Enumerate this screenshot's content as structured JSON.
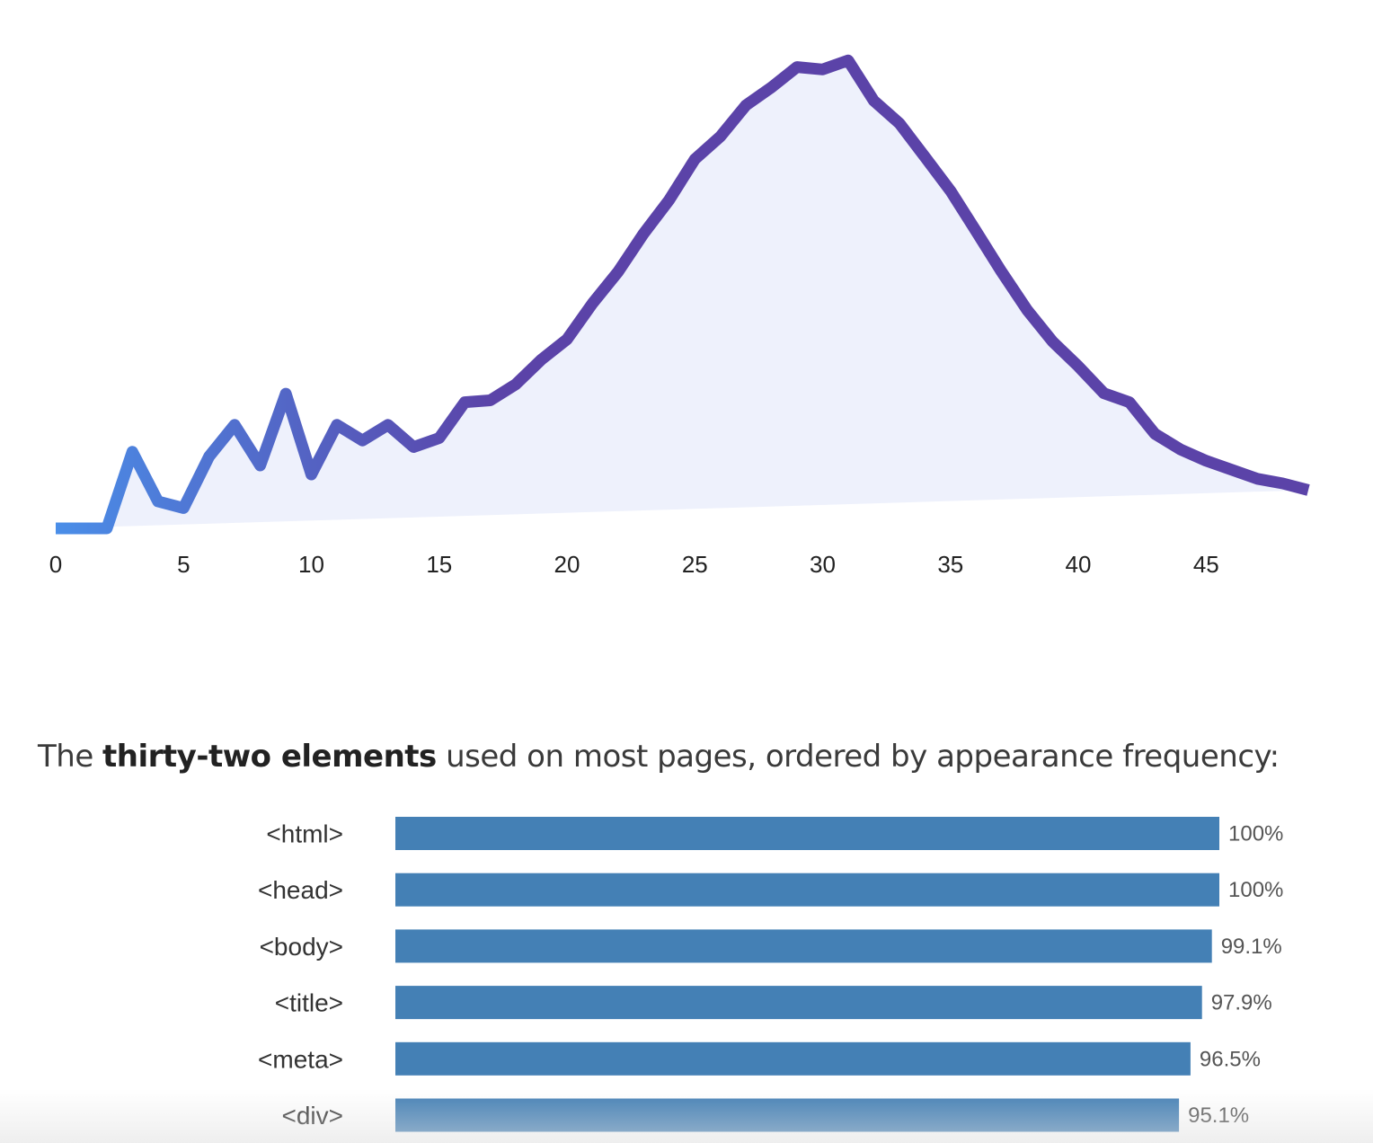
{
  "chart_data": [
    {
      "type": "area",
      "title": "",
      "xlabel": "",
      "ylabel": "",
      "x": [
        0,
        1,
        2,
        3,
        4,
        5,
        6,
        7,
        8,
        9,
        10,
        11,
        12,
        13,
        14,
        15,
        16,
        17,
        18,
        19,
        20,
        21,
        22,
        23,
        24,
        25,
        26,
        27,
        28,
        29,
        30,
        31,
        32,
        33,
        34,
        35,
        36,
        37,
        38,
        39,
        40,
        41,
        42,
        43,
        44,
        45,
        46,
        47,
        48,
        49
      ],
      "values": [
        0.0,
        0.0,
        0.0,
        1.62,
        0.57,
        0.43,
        1.52,
        2.19,
        1.33,
        2.85,
        1.14,
        2.19,
        1.86,
        2.19,
        1.72,
        1.91,
        2.67,
        2.71,
        3.05,
        3.57,
        4.0,
        4.76,
        5.43,
        6.24,
        6.95,
        7.81,
        8.29,
        8.95,
        9.33,
        9.76,
        9.71,
        9.9,
        9.05,
        8.57,
        7.86,
        7.14,
        6.29,
        5.43,
        4.62,
        3.95,
        3.43,
        2.86,
        2.67,
        2.0,
        1.67,
        1.43,
        1.24,
        1.05,
        0.95,
        0.81
      ],
      "ylim": [
        0,
        10
      ],
      "x_ticks": [
        "0",
        "5",
        "10",
        "15",
        "20",
        "25",
        "30",
        "35",
        "40",
        "45"
      ],
      "grid": false,
      "colors": {
        "line_start": "#4a8ee8",
        "line_end": "#5b43a8",
        "fill": "#eef1fc"
      }
    },
    {
      "type": "bar",
      "orientation": "horizontal",
      "categories": [
        "<html>",
        "<head>",
        "<body>",
        "<title>",
        "<meta>",
        "<div>"
      ],
      "values": [
        100,
        100,
        99.1,
        97.9,
        96.5,
        95.1
      ],
      "value_labels": [
        "100%",
        "100%",
        "99.1%",
        "97.9%",
        "96.5%",
        "95.1%"
      ],
      "xlim": [
        0,
        100
      ],
      "colors": {
        "bar": "#4480b5"
      }
    }
  ],
  "caption": {
    "prefix": "The ",
    "bold": "thirty-two elements",
    "suffix": " used on most pages, ordered by appearance frequency:"
  }
}
